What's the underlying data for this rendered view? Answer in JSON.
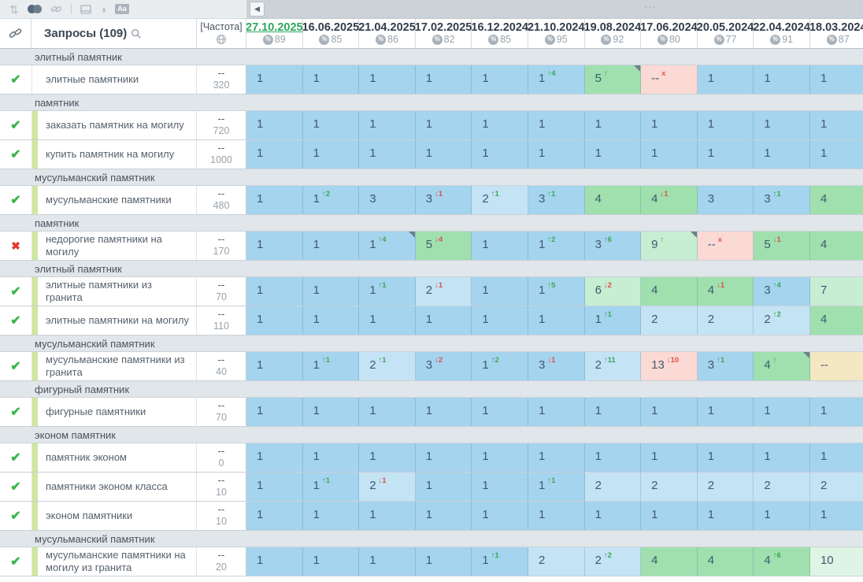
{
  "colors": {
    "palette": {
      "b": "#a5d4ee",
      "b2": "#c4e3f5",
      "g": "#9fe0ae",
      "g2": "#c7edd2",
      "g3": "#def4e5",
      "p": "#fbd9d5",
      "y": "#f4e8c2"
    },
    "group_band": "#e1e6ea",
    "active_date": "#2aa95f",
    "up": "#3aa755",
    "down": "#d9534c",
    "stripe": "#cfe79f"
  },
  "toolbar": {
    "icons": [
      "sort-icon",
      "toggle-icon",
      "link-icon",
      "frame-icon",
      "contrast-icon",
      "font-size-icon"
    ],
    "font_icon_label": "Aa",
    "sort_glyph": "⇅",
    "contrast_glyph": "◑"
  },
  "scrollbar": {
    "nav_left_glyph": "◀",
    "dots": "···"
  },
  "header": {
    "queries_label": "Запросы (109)",
    "frequency_label": "[Частота]",
    "dates": [
      {
        "label": "27.10.2025",
        "pct": "89",
        "active": true
      },
      {
        "label": "16.06.2025",
        "pct": "85"
      },
      {
        "label": "21.04.2025",
        "pct": "86"
      },
      {
        "label": "17.02.2025",
        "pct": "82"
      },
      {
        "label": "16.12.2024",
        "pct": "85"
      },
      {
        "label": "21.10.2024",
        "pct": "95"
      },
      {
        "label": "19.08.2024",
        "pct": "92"
      },
      {
        "label": "17.06.2024",
        "pct": "80"
      },
      {
        "label": "20.05.2024",
        "pct": "77"
      },
      {
        "label": "22.04.2024",
        "pct": "91"
      },
      {
        "label": "18.03.2024",
        "pct": "87"
      }
    ]
  },
  "status_glyphs": {
    "ok": "✔",
    "bad": "✖"
  },
  "groups": [
    {
      "name": "элитный памятник",
      "rows": [
        {
          "status": "ok",
          "stripe": false,
          "keyword": "элитные памятники",
          "freq_top": "--",
          "freq": "320",
          "cells": [
            {
              "v": "1",
              "bg": "b"
            },
            {
              "v": "1",
              "bg": "b"
            },
            {
              "v": "1",
              "bg": "b"
            },
            {
              "v": "1",
              "bg": "b"
            },
            {
              "v": "1",
              "bg": "b"
            },
            {
              "v": "1",
              "bg": "b",
              "chg": "↑4",
              "dir": "up"
            },
            {
              "v": "5",
              "bg": "g",
              "chg": "↑",
              "dir": "up",
              "mark": true
            },
            {
              "v": "--",
              "bg": "p",
              "chg": "x",
              "dir": "x"
            },
            {
              "v": "1",
              "bg": "b"
            },
            {
              "v": "1",
              "bg": "b"
            },
            {
              "v": "1",
              "bg": "b"
            }
          ]
        }
      ]
    },
    {
      "name": "памятник",
      "rows": [
        {
          "status": "ok",
          "stripe": true,
          "keyword": "заказать памятник на могилу",
          "freq_top": "--",
          "freq": "720",
          "cells": [
            {
              "v": "1",
              "bg": "b"
            },
            {
              "v": "1",
              "bg": "b"
            },
            {
              "v": "1",
              "bg": "b"
            },
            {
              "v": "1",
              "bg": "b"
            },
            {
              "v": "1",
              "bg": "b"
            },
            {
              "v": "1",
              "bg": "b"
            },
            {
              "v": "1",
              "bg": "b"
            },
            {
              "v": "1",
              "bg": "b"
            },
            {
              "v": "1",
              "bg": "b"
            },
            {
              "v": "1",
              "bg": "b"
            },
            {
              "v": "1",
              "bg": "b"
            }
          ]
        },
        {
          "status": "ok",
          "stripe": true,
          "keyword": "купить памятник на могилу",
          "freq_top": "--",
          "freq": "1000",
          "cells": [
            {
              "v": "1",
              "bg": "b"
            },
            {
              "v": "1",
              "bg": "b"
            },
            {
              "v": "1",
              "bg": "b"
            },
            {
              "v": "1",
              "bg": "b"
            },
            {
              "v": "1",
              "bg": "b"
            },
            {
              "v": "1",
              "bg": "b"
            },
            {
              "v": "1",
              "bg": "b"
            },
            {
              "v": "1",
              "bg": "b"
            },
            {
              "v": "1",
              "bg": "b"
            },
            {
              "v": "1",
              "bg": "b"
            },
            {
              "v": "1",
              "bg": "b"
            }
          ]
        }
      ]
    },
    {
      "name": "мусульманский памятник",
      "rows": [
        {
          "status": "ok",
          "stripe": true,
          "keyword": "мусульманские памятники",
          "freq_top": "--",
          "freq": "480",
          "cells": [
            {
              "v": "1",
              "bg": "b"
            },
            {
              "v": "1",
              "bg": "b",
              "chg": "↑2",
              "dir": "up"
            },
            {
              "v": "3",
              "bg": "b"
            },
            {
              "v": "3",
              "bg": "b",
              "chg": "↓1",
              "dir": "down"
            },
            {
              "v": "2",
              "bg": "b2",
              "chg": "↑1",
              "dir": "up"
            },
            {
              "v": "3",
              "bg": "b",
              "chg": "↑1",
              "dir": "up"
            },
            {
              "v": "4",
              "bg": "g"
            },
            {
              "v": "4",
              "bg": "g",
              "chg": "↓1",
              "dir": "down"
            },
            {
              "v": "3",
              "bg": "b"
            },
            {
              "v": "3",
              "bg": "b",
              "chg": "↑1",
              "dir": "up"
            },
            {
              "v": "4",
              "bg": "g"
            }
          ]
        }
      ]
    },
    {
      "name": "памятник",
      "rows": [
        {
          "status": "bad",
          "stripe": true,
          "keyword": "недорогие памятники на могилу",
          "freq_top": "--",
          "freq": "170",
          "cells": [
            {
              "v": "1",
              "bg": "b"
            },
            {
              "v": "1",
              "bg": "b"
            },
            {
              "v": "1",
              "bg": "b",
              "chg": "↑4",
              "dir": "up",
              "mark": true
            },
            {
              "v": "5",
              "bg": "g",
              "chg": "↓4",
              "dir": "down"
            },
            {
              "v": "1",
              "bg": "b"
            },
            {
              "v": "1",
              "bg": "b",
              "chg": "↑2",
              "dir": "up"
            },
            {
              "v": "3",
              "bg": "b",
              "chg": "↑6",
              "dir": "up"
            },
            {
              "v": "9",
              "bg": "g2",
              "chg": "↑",
              "dir": "up",
              "mark": true
            },
            {
              "v": "--",
              "bg": "p",
              "chg": "x",
              "dir": "x"
            },
            {
              "v": "5",
              "bg": "g",
              "chg": "↓1",
              "dir": "down"
            },
            {
              "v": "4",
              "bg": "g"
            }
          ]
        }
      ]
    },
    {
      "name": "элитный памятник",
      "rows": [
        {
          "status": "ok",
          "stripe": true,
          "keyword": "элитные памятники из гранита",
          "freq_top": "--",
          "freq": "70",
          "cells": [
            {
              "v": "1",
              "bg": "b"
            },
            {
              "v": "1",
              "bg": "b"
            },
            {
              "v": "1",
              "bg": "b",
              "chg": "↑1",
              "dir": "up"
            },
            {
              "v": "2",
              "bg": "b2",
              "chg": "↓1",
              "dir": "down"
            },
            {
              "v": "1",
              "bg": "b"
            },
            {
              "v": "1",
              "bg": "b",
              "chg": "↑5",
              "dir": "up"
            },
            {
              "v": "6",
              "bg": "g2",
              "chg": "↓2",
              "dir": "down"
            },
            {
              "v": "4",
              "bg": "g"
            },
            {
              "v": "4",
              "bg": "g",
              "chg": "↓1",
              "dir": "down"
            },
            {
              "v": "3",
              "bg": "b",
              "chg": "↑4",
              "dir": "up"
            },
            {
              "v": "7",
              "bg": "g2"
            }
          ]
        },
        {
          "status": "ok",
          "stripe": true,
          "keyword": "элитные памятники на могилу",
          "freq_top": "--",
          "freq": "110",
          "cells": [
            {
              "v": "1",
              "bg": "b"
            },
            {
              "v": "1",
              "bg": "b"
            },
            {
              "v": "1",
              "bg": "b"
            },
            {
              "v": "1",
              "bg": "b"
            },
            {
              "v": "1",
              "bg": "b"
            },
            {
              "v": "1",
              "bg": "b"
            },
            {
              "v": "1",
              "bg": "b",
              "chg": "↑1",
              "dir": "up"
            },
            {
              "v": "2",
              "bg": "b2"
            },
            {
              "v": "2",
              "bg": "b2"
            },
            {
              "v": "2",
              "bg": "b2",
              "chg": "↑2",
              "dir": "up"
            },
            {
              "v": "4",
              "bg": "g"
            }
          ]
        }
      ]
    },
    {
      "name": "мусульманский памятник",
      "rows": [
        {
          "status": "ok",
          "stripe": true,
          "keyword": "мусульманские памятники из гранита",
          "freq_top": "--",
          "freq": "40",
          "cells": [
            {
              "v": "1",
              "bg": "b"
            },
            {
              "v": "1",
              "bg": "b",
              "chg": "↑1",
              "dir": "up"
            },
            {
              "v": "2",
              "bg": "b2",
              "chg": "↑1",
              "dir": "up"
            },
            {
              "v": "3",
              "bg": "b",
              "chg": "↓2",
              "dir": "down"
            },
            {
              "v": "1",
              "bg": "b",
              "chg": "↑2",
              "dir": "up"
            },
            {
              "v": "3",
              "bg": "b",
              "chg": "↓1",
              "dir": "down"
            },
            {
              "v": "2",
              "bg": "b2",
              "chg": "↑11",
              "dir": "up"
            },
            {
              "v": "13",
              "bg": "p",
              "chg": "↓10",
              "dir": "down"
            },
            {
              "v": "3",
              "bg": "b",
              "chg": "↑1",
              "dir": "up"
            },
            {
              "v": "4",
              "bg": "g",
              "chg": "↑",
              "dir": "up",
              "mark": true
            },
            {
              "v": "--",
              "bg": "y"
            }
          ]
        }
      ]
    },
    {
      "name": "фигурный памятник",
      "rows": [
        {
          "status": "ok",
          "stripe": true,
          "keyword": "фигурные памятники",
          "freq_top": "--",
          "freq": "70",
          "cells": [
            {
              "v": "1",
              "bg": "b"
            },
            {
              "v": "1",
              "bg": "b"
            },
            {
              "v": "1",
              "bg": "b"
            },
            {
              "v": "1",
              "bg": "b"
            },
            {
              "v": "1",
              "bg": "b"
            },
            {
              "v": "1",
              "bg": "b"
            },
            {
              "v": "1",
              "bg": "b"
            },
            {
              "v": "1",
              "bg": "b"
            },
            {
              "v": "1",
              "bg": "b"
            },
            {
              "v": "1",
              "bg": "b"
            },
            {
              "v": "1",
              "bg": "b"
            }
          ]
        }
      ]
    },
    {
      "name": "эконом памятник",
      "rows": [
        {
          "status": "ok",
          "stripe": true,
          "keyword": "памятник эконом",
          "freq_top": "--",
          "freq": "0",
          "cells": [
            {
              "v": "1",
              "bg": "b"
            },
            {
              "v": "1",
              "bg": "b"
            },
            {
              "v": "1",
              "bg": "b"
            },
            {
              "v": "1",
              "bg": "b"
            },
            {
              "v": "1",
              "bg": "b"
            },
            {
              "v": "1",
              "bg": "b"
            },
            {
              "v": "1",
              "bg": "b"
            },
            {
              "v": "1",
              "bg": "b"
            },
            {
              "v": "1",
              "bg": "b"
            },
            {
              "v": "1",
              "bg": "b"
            },
            {
              "v": "1",
              "bg": "b"
            }
          ]
        },
        {
          "status": "ok",
          "stripe": true,
          "keyword": "памятники эконом класса",
          "freq_top": "--",
          "freq": "10",
          "cells": [
            {
              "v": "1",
              "bg": "b"
            },
            {
              "v": "1",
              "bg": "b",
              "chg": "↑1",
              "dir": "up"
            },
            {
              "v": "2",
              "bg": "b2",
              "chg": "↓1",
              "dir": "down"
            },
            {
              "v": "1",
              "bg": "b"
            },
            {
              "v": "1",
              "bg": "b"
            },
            {
              "v": "1",
              "bg": "b",
              "chg": "↑1",
              "dir": "up"
            },
            {
              "v": "2",
              "bg": "b2"
            },
            {
              "v": "2",
              "bg": "b2"
            },
            {
              "v": "2",
              "bg": "b2"
            },
            {
              "v": "2",
              "bg": "b2"
            },
            {
              "v": "2",
              "bg": "b2"
            }
          ]
        },
        {
          "status": "ok",
          "stripe": true,
          "keyword": "эконом памятники",
          "freq_top": "--",
          "freq": "10",
          "cells": [
            {
              "v": "1",
              "bg": "b"
            },
            {
              "v": "1",
              "bg": "b"
            },
            {
              "v": "1",
              "bg": "b"
            },
            {
              "v": "1",
              "bg": "b"
            },
            {
              "v": "1",
              "bg": "b"
            },
            {
              "v": "1",
              "bg": "b"
            },
            {
              "v": "1",
              "bg": "b"
            },
            {
              "v": "1",
              "bg": "b"
            },
            {
              "v": "1",
              "bg": "b"
            },
            {
              "v": "1",
              "bg": "b"
            },
            {
              "v": "1",
              "bg": "b"
            }
          ]
        }
      ]
    },
    {
      "name": "мусульманский памятник",
      "rows": [
        {
          "status": "ok",
          "stripe": true,
          "keyword": "мусульманские памятники на могилу из гранита",
          "freq_top": "--",
          "freq": "20",
          "cells": [
            {
              "v": "1",
              "bg": "b"
            },
            {
              "v": "1",
              "bg": "b"
            },
            {
              "v": "1",
              "bg": "b"
            },
            {
              "v": "1",
              "bg": "b"
            },
            {
              "v": "1",
              "bg": "b",
              "chg": "↑1",
              "dir": "up"
            },
            {
              "v": "2",
              "bg": "b2"
            },
            {
              "v": "2",
              "bg": "b2",
              "chg": "↑2",
              "dir": "up"
            },
            {
              "v": "4",
              "bg": "g"
            },
            {
              "v": "4",
              "bg": "g"
            },
            {
              "v": "4",
              "bg": "g",
              "chg": "↑6",
              "dir": "up"
            },
            {
              "v": "10",
              "bg": "g3"
            }
          ]
        }
      ]
    }
  ]
}
